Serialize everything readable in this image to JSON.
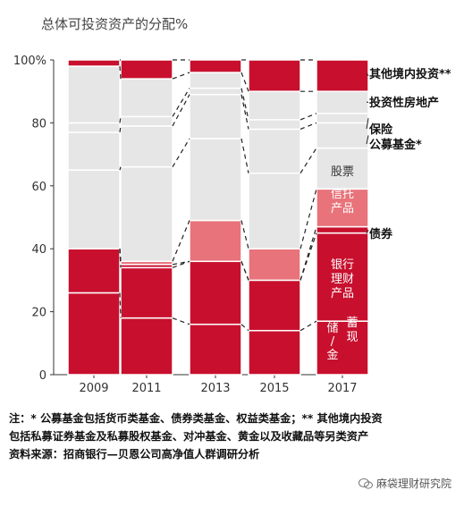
{
  "chart_data": {
    "type": "bar",
    "stacked": true,
    "title": "总体可投资资产的分配%",
    "categories": [
      "2009",
      "2011",
      "2013",
      "2015",
      "2017"
    ],
    "ylim": [
      0,
      100
    ],
    "yticks": [
      "0",
      "20",
      "40",
      "60",
      "80",
      "100%"
    ],
    "series": [
      {
        "name": "储蓄/现金",
        "color": "#c8102e",
        "values": [
          26,
          18,
          16,
          14,
          17
        ]
      },
      {
        "name": "银行理财产品",
        "color": "#c8102e",
        "values": [
          14,
          16,
          20,
          16,
          28
        ]
      },
      {
        "name": "债券",
        "color": "#c8102e",
        "values": [
          0,
          1,
          0,
          0,
          2
        ]
      },
      {
        "name": "信托产品",
        "color": "#e8737a",
        "values": [
          0,
          1,
          13,
          10,
          12
        ]
      },
      {
        "name": "股票",
        "color": "#e6e6e6",
        "values": [
          25,
          30,
          26,
          24,
          13
        ]
      },
      {
        "name": "公募基金*",
        "color": "#e6e6e6",
        "values": [
          12,
          13,
          14,
          14,
          8
        ]
      },
      {
        "name": "保险",
        "color": "#e6e6e6",
        "values": [
          3,
          3,
          2,
          3,
          3
        ]
      },
      {
        "name": "投资性房地产",
        "color": "#e6e6e6",
        "values": [
          18,
          12,
          5,
          9,
          7
        ]
      },
      {
        "name": "其他境内投资**",
        "color": "#c8102e",
        "values": [
          2,
          6,
          4,
          10,
          10
        ]
      }
    ],
    "legend_right": [
      "其他境内投资**",
      "投资性房地产",
      "保险",
      "公募基金*",
      "债券"
    ],
    "inside_labels": {
      "stock": "股票",
      "trust": [
        "信托",
        "产品"
      ],
      "wealth": [
        "银行",
        "理财",
        "产品"
      ],
      "savings_left": [
        "储",
        "/",
        "金"
      ],
      "savings_right": [
        "蓄",
        "现"
      ]
    }
  },
  "footnote": {
    "line1": "注：* 公募基金包括货币类基金、债券类基金、权益类基金；** 其他境内投资",
    "line2": "包括私募证券基金及私募股权基金、对冲基金、黄金以及收藏品等另类资产",
    "line3": "资料来源：招商银行—贝恩公司高净值人群调研分析"
  },
  "watermark": {
    "text": "麻袋理财研究院"
  }
}
